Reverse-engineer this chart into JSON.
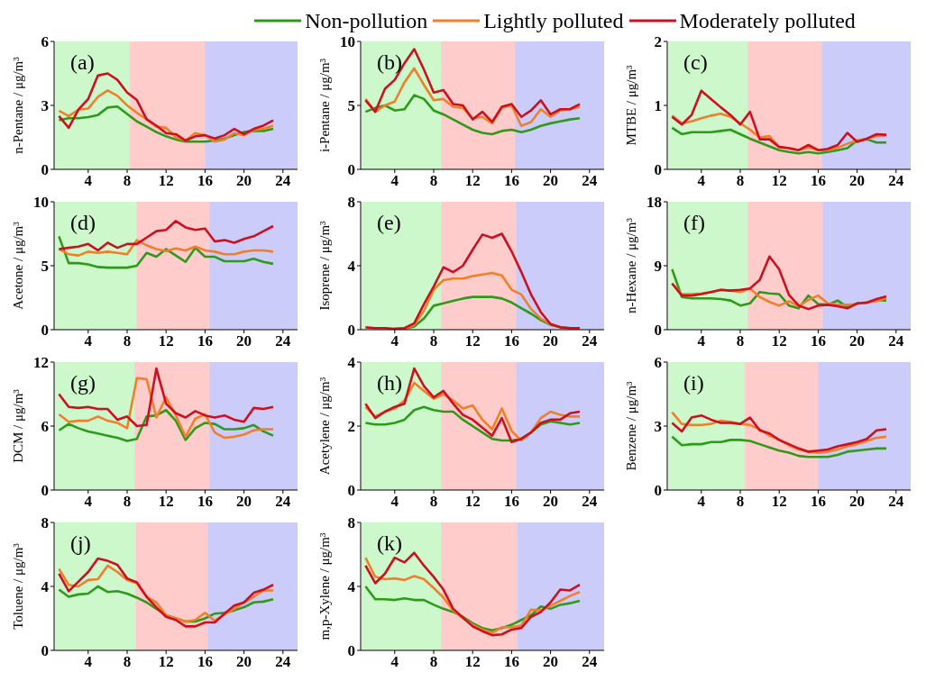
{
  "chart_data": [
    {
      "type": "line",
      "ylabel": "n-Pentane / μg/m³",
      "annotations": [
        "(a)"
      ],
      "legend": "top",
      "x": [
        1,
        2,
        3,
        4,
        5,
        6,
        7,
        8,
        9,
        10,
        11,
        12,
        13,
        14,
        15,
        16,
        17,
        18,
        19,
        20,
        21,
        22,
        23
      ],
      "xlim": [
        0.5,
        25.5
      ],
      "xticks": [
        4,
        8,
        12,
        16,
        20,
        24
      ],
      "ylim": [
        0,
        6
      ],
      "yticks": [
        0,
        3,
        6
      ],
      "bands": [
        {
          "axis": "x",
          "from": 0.6,
          "to": 8.3,
          "color": "#ccf8cc"
        },
        {
          "axis": "x",
          "from": 8.3,
          "to": 16,
          "color": "#ffcccc"
        },
        {
          "axis": "x",
          "from": 16,
          "to": 25.5,
          "color": "#ccccfb"
        }
      ],
      "series": [
        {
          "name": "Non-pollution",
          "color": "#2e9a1a",
          "values": [
            2.3,
            2.4,
            2.4,
            2.45,
            2.55,
            2.9,
            2.95,
            2.6,
            2.25,
            2.0,
            1.75,
            1.55,
            1.4,
            1.3,
            1.3,
            1.3,
            1.35,
            1.45,
            1.6,
            1.75,
            1.8,
            1.8,
            1.9
          ]
        },
        {
          "name": "Lightly polluted",
          "color": "#f07f2a",
          "values": [
            2.75,
            2.5,
            2.8,
            2.85,
            3.4,
            3.7,
            3.45,
            3.0,
            2.65,
            2.35,
            2.0,
            1.95,
            1.5,
            1.35,
            1.7,
            1.6,
            1.3,
            1.4,
            1.7,
            1.6,
            1.85,
            1.9,
            2.05
          ]
        },
        {
          "name": "Moderately polluted",
          "color": "#cc1020",
          "values": [
            2.5,
            1.95,
            2.8,
            3.3,
            4.4,
            4.5,
            4.2,
            3.6,
            3.25,
            2.35,
            2.05,
            1.7,
            1.65,
            1.35,
            1.55,
            1.6,
            1.45,
            1.6,
            1.9,
            1.65,
            1.9,
            2.05,
            2.3
          ]
        }
      ]
    },
    {
      "type": "line",
      "ylabel": "i-Pentane / μg/m³",
      "annotations": [
        "(b)"
      ],
      "x": [
        1,
        2,
        3,
        4,
        5,
        6,
        7,
        8,
        9,
        10,
        11,
        12,
        13,
        14,
        15,
        16,
        17,
        18,
        19,
        20,
        21,
        22,
        23
      ],
      "xlim": [
        0.5,
        25.5
      ],
      "xticks": [
        4,
        8,
        12,
        16,
        20,
        24
      ],
      "ylim": [
        0,
        10
      ],
      "yticks": [
        0,
        5,
        10
      ],
      "bands": [
        {
          "axis": "x",
          "from": 0.6,
          "to": 8.8,
          "color": "#ccf8cc"
        },
        {
          "axis": "x",
          "from": 8.8,
          "to": 16.4,
          "color": "#ffcccc"
        },
        {
          "axis": "x",
          "from": 16.4,
          "to": 25.5,
          "color": "#ccccfb"
        }
      ],
      "series": [
        {
          "color": "#2e9a1a",
          "values": [
            4.5,
            4.8,
            5.0,
            4.6,
            4.7,
            5.8,
            5.5,
            4.6,
            4.3,
            3.9,
            3.5,
            3.1,
            2.85,
            2.75,
            3.0,
            3.1,
            2.9,
            3.1,
            3.4,
            3.6,
            3.75,
            3.9,
            4.0
          ]
        },
        {
          "color": "#f07f2a",
          "values": [
            5.5,
            4.5,
            5.0,
            5.3,
            6.8,
            7.9,
            6.6,
            5.4,
            5.5,
            4.9,
            4.8,
            4.0,
            4.1,
            3.6,
            4.8,
            5.0,
            3.4,
            3.7,
            4.7,
            4.1,
            4.6,
            4.7,
            4.9
          ]
        },
        {
          "color": "#cc1020",
          "values": [
            5.4,
            4.5,
            6.3,
            7.0,
            8.3,
            9.4,
            7.8,
            6.0,
            6.2,
            5.1,
            5.0,
            3.9,
            4.5,
            3.7,
            4.9,
            5.1,
            4.1,
            4.6,
            5.4,
            4.3,
            4.7,
            4.7,
            5.1
          ]
        }
      ]
    },
    {
      "type": "line",
      "ylabel": "MTBE / μg/m³",
      "annotations": [
        "(c)"
      ],
      "x": [
        1,
        2,
        3,
        4,
        5,
        6,
        7,
        8,
        9,
        10,
        11,
        12,
        13,
        14,
        15,
        16,
        17,
        18,
        19,
        20,
        21,
        22,
        23
      ],
      "xlim": [
        0.5,
        25.5
      ],
      "xticks": [
        4,
        8,
        12,
        16,
        20,
        24
      ],
      "ylim": [
        0,
        2
      ],
      "yticks": [
        0,
        1,
        2
      ],
      "bands": [
        {
          "axis": "x",
          "from": 0.6,
          "to": 8.8,
          "color": "#ccf8cc"
        },
        {
          "axis": "x",
          "from": 8.8,
          "to": 16.4,
          "color": "#ffcccc"
        },
        {
          "axis": "x",
          "from": 16.4,
          "to": 25.5,
          "color": "#ccccfb"
        }
      ],
      "series": [
        {
          "color": "#2e9a1a",
          "values": [
            0.65,
            0.55,
            0.58,
            0.58,
            0.58,
            0.6,
            0.62,
            0.55,
            0.48,
            0.42,
            0.36,
            0.3,
            0.27,
            0.25,
            0.27,
            0.25,
            0.27,
            0.3,
            0.33,
            0.45,
            0.47,
            0.42,
            0.42
          ]
        },
        {
          "color": "#f07f2a",
          "values": [
            0.84,
            0.72,
            0.75,
            0.8,
            0.84,
            0.87,
            0.82,
            0.72,
            0.62,
            0.5,
            0.52,
            0.35,
            0.33,
            0.3,
            0.34,
            0.3,
            0.3,
            0.34,
            0.4,
            0.45,
            0.48,
            0.52,
            0.53
          ]
        },
        {
          "color": "#cc1020",
          "values": [
            0.82,
            0.7,
            0.85,
            1.23,
            1.1,
            0.97,
            0.85,
            0.7,
            0.9,
            0.47,
            0.47,
            0.35,
            0.33,
            0.3,
            0.38,
            0.3,
            0.32,
            0.38,
            0.57,
            0.43,
            0.48,
            0.55,
            0.54
          ]
        }
      ]
    },
    {
      "type": "line",
      "ylabel": "Acetone / μg/m³",
      "annotations": [
        "(d)"
      ],
      "x": [
        1,
        2,
        3,
        4,
        5,
        6,
        7,
        8,
        9,
        10,
        11,
        12,
        13,
        14,
        15,
        16,
        17,
        18,
        19,
        20,
        21,
        22,
        23
      ],
      "xlim": [
        0.5,
        25.5
      ],
      "xticks": [
        4,
        8,
        12,
        16,
        20,
        24
      ],
      "ylim": [
        0,
        10
      ],
      "yticks": [
        0,
        5,
        10
      ],
      "bands": [
        {
          "axis": "x",
          "from": 0.6,
          "to": 9,
          "color": "#ccf8cc"
        },
        {
          "axis": "x",
          "from": 9,
          "to": 16.5,
          "color": "#ffcccc"
        },
        {
          "axis": "x",
          "from": 16.5,
          "to": 25.5,
          "color": "#ccccfb"
        }
      ],
      "series": [
        {
          "color": "#2e9a1a",
          "values": [
            7.3,
            5.2,
            5.2,
            5.1,
            4.9,
            4.85,
            4.85,
            4.85,
            5.0,
            6.0,
            5.7,
            6.3,
            5.8,
            5.3,
            6.4,
            5.7,
            5.7,
            5.35,
            5.35,
            5.35,
            5.55,
            5.3,
            5.15
          ]
        },
        {
          "color": "#f07f2a",
          "values": [
            6.3,
            5.9,
            5.8,
            6.1,
            6.0,
            6.1,
            6.0,
            5.9,
            7.0,
            6.6,
            6.3,
            6.15,
            6.35,
            6.2,
            6.5,
            6.2,
            6.1,
            5.9,
            5.9,
            6.1,
            6.2,
            6.2,
            6.1
          ]
        },
        {
          "color": "#cc1020",
          "values": [
            6.3,
            6.4,
            6.5,
            6.7,
            6.2,
            6.8,
            6.4,
            6.7,
            6.7,
            7.2,
            7.7,
            7.8,
            8.5,
            8.0,
            7.8,
            7.9,
            6.9,
            7.0,
            6.8,
            7.1,
            7.3,
            7.7,
            8.1
          ]
        }
      ]
    },
    {
      "type": "line",
      "ylabel": "Isoprene / μg/m³",
      "annotations": [
        "(e)"
      ],
      "x": [
        1,
        2,
        3,
        4,
        5,
        6,
        7,
        8,
        9,
        10,
        11,
        12,
        13,
        14,
        15,
        16,
        17,
        18,
        19,
        20,
        21,
        22,
        23
      ],
      "xlim": [
        0.5,
        25.5
      ],
      "xticks": [
        4,
        8,
        12,
        16,
        20,
        24
      ],
      "ylim": [
        0,
        8
      ],
      "yticks": [
        0,
        4,
        8
      ],
      "bands": [
        {
          "axis": "x",
          "from": 0.6,
          "to": 8.8,
          "color": "#ccf8cc"
        },
        {
          "axis": "x",
          "from": 8.8,
          "to": 16.5,
          "color": "#ffcccc"
        },
        {
          "axis": "x",
          "from": 16.5,
          "to": 25.5,
          "color": "#ccccfb"
        }
      ],
      "series": [
        {
          "color": "#2e9a1a",
          "values": [
            null,
            null,
            null,
            0.05,
            0.05,
            0.2,
            0.7,
            1.5,
            1.65,
            1.8,
            1.95,
            2.05,
            2.05,
            2.05,
            1.95,
            1.7,
            1.35,
            1.0,
            0.6,
            0.3,
            0.15,
            0.1,
            0.1
          ]
        },
        {
          "color": "#f07f2a",
          "values": [
            null,
            null,
            null,
            0.05,
            0.05,
            0.3,
            1.2,
            2.5,
            3.1,
            3.2,
            3.2,
            3.35,
            3.45,
            3.55,
            3.4,
            2.5,
            2.2,
            1.3,
            0.7,
            0.35,
            0.15,
            null,
            null
          ]
        },
        {
          "color": "#cc1020",
          "values": [
            0.15,
            0.1,
            0.1,
            0.05,
            0.1,
            0.4,
            1.6,
            2.7,
            3.9,
            3.6,
            4.0,
            5.0,
            5.95,
            5.75,
            6.0,
            4.9,
            3.6,
            2.2,
            1.1,
            0.35,
            0.15,
            0.1,
            0.1
          ]
        }
      ]
    },
    {
      "type": "line",
      "ylabel": "n-Hexane / μg/m³",
      "annotations": [
        "(f)"
      ],
      "x": [
        1,
        2,
        3,
        4,
        5,
        6,
        7,
        8,
        9,
        10,
        11,
        12,
        13,
        14,
        15,
        16,
        17,
        18,
        19,
        20,
        21,
        22,
        23
      ],
      "xlim": [
        0.5,
        25.5
      ],
      "xticks": [
        4,
        8,
        12,
        16,
        20,
        24
      ],
      "ylim": [
        0,
        18
      ],
      "yticks": [
        0,
        9,
        18
      ],
      "bands": [
        {
          "axis": "x",
          "from": 0.6,
          "to": 8.8,
          "color": "#ccf8cc"
        },
        {
          "axis": "x",
          "from": 8.8,
          "to": 16.5,
          "color": "#ffcccc"
        },
        {
          "axis": "x",
          "from": 16.5,
          "to": 25.5,
          "color": "#ccccfb"
        }
      ],
      "series": [
        {
          "color": "#2e9a1a",
          "values": [
            8.5,
            4.6,
            4.4,
            4.4,
            4.4,
            4.3,
            4.1,
            3.4,
            3.7,
            5.3,
            5.1,
            5.0,
            3.4,
            3.0,
            4.8,
            3.6,
            3.5,
            4.1,
            3.2,
            3.7,
            3.8,
            4.2,
            4.1
          ]
        },
        {
          "color": "#f07f2a",
          "values": [
            6.5,
            5.0,
            5.0,
            5.1,
            5.3,
            5.6,
            5.5,
            5.3,
            5.8,
            4.6,
            3.9,
            3.4,
            4.0,
            3.3,
            4.2,
            4.8,
            3.7,
            3.5,
            3.5,
            3.6,
            3.9,
            4.0,
            4.5
          ]
        },
        {
          "color": "#cc1020",
          "values": [
            6.5,
            4.8,
            4.8,
            5.0,
            5.3,
            5.6,
            5.5,
            5.6,
            5.8,
            7.0,
            10.3,
            8.5,
            4.9,
            3.4,
            2.9,
            3.4,
            3.5,
            3.3,
            3.0,
            3.7,
            3.8,
            4.3,
            4.7
          ]
        }
      ]
    },
    {
      "type": "line",
      "ylabel": "DCM / μg/m³",
      "annotations": [
        "(g)"
      ],
      "x": [
        1,
        2,
        3,
        4,
        5,
        6,
        7,
        8,
        9,
        10,
        11,
        12,
        13,
        14,
        15,
        16,
        17,
        18,
        19,
        20,
        21,
        22,
        23
      ],
      "xlim": [
        0.5,
        25.5
      ],
      "xticks": [
        4,
        8,
        12,
        16,
        20,
        24
      ],
      "ylim": [
        0,
        12
      ],
      "yticks": [
        0,
        6,
        12
      ],
      "bands": [
        {
          "axis": "x",
          "from": 0.6,
          "to": 8.8,
          "color": "#ccf8cc"
        },
        {
          "axis": "x",
          "from": 8.8,
          "to": 16.5,
          "color": "#ffcccc"
        },
        {
          "axis": "x",
          "from": 16.5,
          "to": 25.5,
          "color": "#ccccfb"
        }
      ],
      "series": [
        {
          "color": "#2e9a1a",
          "values": [
            5.6,
            6.2,
            5.8,
            5.5,
            5.3,
            5.1,
            4.9,
            4.6,
            4.8,
            6.9,
            7.0,
            7.5,
            6.5,
            4.7,
            5.8,
            6.3,
            6.2,
            5.7,
            5.7,
            5.8,
            6.1,
            5.5,
            5.1
          ]
        },
        {
          "color": "#f07f2a",
          "values": [
            7.1,
            6.4,
            6.5,
            6.5,
            6.9,
            6.5,
            6.3,
            5.8,
            10.5,
            10.4,
            6.8,
            8.7,
            7.0,
            5.0,
            6.7,
            7.1,
            5.4,
            4.9,
            5.0,
            5.2,
            5.6,
            5.7,
            5.7
          ]
        },
        {
          "color": "#cc1020",
          "values": [
            9.0,
            7.8,
            7.7,
            7.8,
            7.6,
            7.6,
            6.6,
            6.9,
            6.0,
            6.1,
            11.4,
            8.1,
            7.2,
            6.8,
            7.4,
            7.0,
            6.8,
            7.0,
            6.6,
            6.4,
            7.7,
            7.6,
            7.8
          ]
        }
      ]
    },
    {
      "type": "line",
      "ylabel": "Acetylene / μg/m³",
      "annotations": [
        "(h)"
      ],
      "x": [
        1,
        2,
        3,
        4,
        5,
        6,
        7,
        8,
        9,
        10,
        11,
        12,
        13,
        14,
        15,
        16,
        17,
        18,
        19,
        20,
        21,
        22,
        23
      ],
      "xlim": [
        0.5,
        25.5
      ],
      "xticks": [
        4,
        8,
        12,
        16,
        20,
        24
      ],
      "ylim": [
        0,
        4
      ],
      "yticks": [
        0,
        2,
        4
      ],
      "bands": [
        {
          "axis": "x",
          "from": 0.6,
          "to": 8.8,
          "color": "#ccf8cc"
        },
        {
          "axis": "x",
          "from": 8.8,
          "to": 16.5,
          "color": "#ffcccc"
        },
        {
          "axis": "x",
          "from": 16.5,
          "to": 25.5,
          "color": "#ccccfb"
        }
      ],
      "series": [
        {
          "color": "#2e9a1a",
          "values": [
            2.1,
            2.05,
            2.05,
            2.1,
            2.2,
            2.5,
            2.6,
            2.5,
            2.45,
            2.45,
            2.2,
            2.0,
            1.8,
            1.6,
            1.55,
            1.55,
            1.6,
            1.8,
            2.05,
            2.15,
            2.1,
            2.05,
            2.1
          ]
        },
        {
          "color": "#f07f2a",
          "values": [
            2.6,
            2.3,
            2.45,
            2.55,
            2.8,
            3.35,
            3.1,
            2.85,
            3.0,
            2.8,
            2.55,
            2.65,
            2.2,
            1.9,
            2.55,
            1.85,
            1.55,
            1.8,
            2.25,
            2.45,
            2.35,
            2.3,
            2.3
          ]
        },
        {
          "color": "#cc1020",
          "values": [
            2.7,
            2.25,
            2.45,
            2.6,
            2.7,
            3.8,
            3.25,
            2.9,
            3.1,
            2.7,
            2.35,
            2.2,
            1.95,
            1.7,
            2.25,
            1.5,
            1.6,
            1.8,
            2.1,
            2.2,
            2.2,
            2.4,
            2.45
          ]
        }
      ]
    },
    {
      "type": "line",
      "ylabel": "Benzene / μg/m³",
      "annotations": [
        "(i)"
      ],
      "x": [
        1,
        2,
        3,
        4,
        5,
        6,
        7,
        8,
        9,
        10,
        11,
        12,
        13,
        14,
        15,
        16,
        17,
        18,
        19,
        20,
        21,
        22,
        23
      ],
      "xlim": [
        0.5,
        25.5
      ],
      "xticks": [
        4,
        8,
        12,
        16,
        20,
        24
      ],
      "ylim": [
        0,
        6
      ],
      "yticks": [
        0,
        3,
        6
      ],
      "bands": [
        {
          "axis": "x",
          "from": 0.6,
          "to": 8.5,
          "color": "#ccf8cc"
        },
        {
          "axis": "x",
          "from": 8.5,
          "to": 16,
          "color": "#ffcccc"
        },
        {
          "axis": "x",
          "from": 16,
          "to": 25.5,
          "color": "#ccccfb"
        }
      ],
      "series": [
        {
          "color": "#2e9a1a",
          "values": [
            2.5,
            2.1,
            2.15,
            2.15,
            2.25,
            2.25,
            2.35,
            2.35,
            2.3,
            2.15,
            2.0,
            1.85,
            1.75,
            1.6,
            1.55,
            1.55,
            1.55,
            1.65,
            1.8,
            1.85,
            1.9,
            1.95,
            1.95
          ]
        },
        {
          "color": "#f07f2a",
          "values": [
            3.65,
            3.1,
            3.05,
            3.05,
            3.1,
            3.25,
            3.2,
            3.1,
            3.05,
            2.85,
            2.55,
            2.35,
            2.1,
            1.9,
            1.8,
            1.75,
            1.8,
            1.9,
            2.05,
            2.15,
            2.3,
            2.45,
            2.5
          ]
        },
        {
          "color": "#cc1020",
          "values": [
            3.15,
            2.75,
            3.4,
            3.5,
            3.3,
            3.15,
            3.15,
            3.1,
            3.4,
            2.8,
            2.65,
            2.35,
            2.15,
            1.95,
            1.8,
            1.85,
            1.9,
            2.05,
            2.15,
            2.25,
            2.4,
            2.8,
            2.85
          ]
        }
      ]
    },
    {
      "type": "line",
      "ylabel": "Toluene / μg/m³",
      "annotations": [
        "(j)"
      ],
      "x": [
        1,
        2,
        3,
        4,
        5,
        6,
        7,
        8,
        9,
        10,
        11,
        12,
        13,
        14,
        15,
        16,
        17,
        18,
        19,
        20,
        21,
        22,
        23
      ],
      "xlim": [
        0.5,
        25.5
      ],
      "xticks": [
        4,
        8,
        12,
        16,
        20,
        24
      ],
      "ylim": [
        0,
        8
      ],
      "yticks": [
        0,
        4,
        8
      ],
      "bands": [
        {
          "axis": "x",
          "from": 0.6,
          "to": 8.9,
          "color": "#ccf8cc"
        },
        {
          "axis": "x",
          "from": 8.9,
          "to": 16.3,
          "color": "#ffcccc"
        },
        {
          "axis": "x",
          "from": 16.3,
          "to": 25.5,
          "color": "#ccccfb"
        }
      ],
      "series": [
        {
          "color": "#2e9a1a",
          "values": [
            3.8,
            3.35,
            3.5,
            3.55,
            4.0,
            3.65,
            3.7,
            3.55,
            3.3,
            3.0,
            2.6,
            2.2,
            2.0,
            1.8,
            1.8,
            2.0,
            2.3,
            2.35,
            2.5,
            2.7,
            3.0,
            3.05,
            3.2
          ]
        },
        {
          "color": "#f07f2a",
          "values": [
            5.1,
            4.1,
            4.0,
            4.4,
            4.45,
            5.3,
            4.9,
            4.4,
            4.2,
            3.35,
            3.0,
            2.2,
            2.0,
            1.8,
            1.9,
            2.35,
            1.85,
            2.25,
            2.6,
            3.0,
            3.35,
            3.75,
            3.75
          ]
        },
        {
          "color": "#cc1020",
          "values": [
            4.8,
            3.7,
            4.3,
            4.9,
            5.75,
            5.6,
            5.35,
            4.5,
            4.25,
            3.35,
            2.7,
            2.1,
            1.9,
            1.5,
            1.5,
            1.75,
            1.75,
            2.3,
            2.8,
            3.0,
            3.6,
            3.8,
            4.1
          ]
        }
      ]
    },
    {
      "type": "line",
      "ylabel": "m,p-Xylene / μg/m³",
      "annotations": [
        "(k)"
      ],
      "x": [
        1,
        2,
        3,
        4,
        5,
        6,
        7,
        8,
        9,
        10,
        11,
        12,
        13,
        14,
        15,
        16,
        17,
        18,
        19,
        20,
        21,
        22,
        23
      ],
      "xlim": [
        0.5,
        25.5
      ],
      "xticks": [
        4,
        8,
        12,
        16,
        20,
        24
      ],
      "ylim": [
        0,
        8
      ],
      "yticks": [
        0,
        4,
        8
      ],
      "bands": [
        {
          "axis": "x",
          "from": 0.6,
          "to": 8.8,
          "color": "#ccf8cc"
        },
        {
          "axis": "x",
          "from": 8.8,
          "to": 16.6,
          "color": "#ffcccc"
        },
        {
          "axis": "x",
          "from": 16.6,
          "to": 25.5,
          "color": "#ccccfb"
        }
      ],
      "series": [
        {
          "color": "#2e9a1a",
          "values": [
            4.0,
            3.2,
            3.2,
            3.15,
            3.25,
            3.15,
            3.15,
            2.85,
            2.6,
            2.4,
            2.1,
            1.7,
            1.4,
            1.25,
            1.4,
            1.6,
            1.9,
            2.2,
            2.75,
            2.6,
            2.85,
            2.95,
            3.1
          ]
        },
        {
          "color": "#f07f2a",
          "values": [
            5.8,
            4.6,
            4.45,
            4.5,
            4.4,
            4.65,
            4.45,
            3.9,
            3.3,
            2.5,
            2.0,
            1.6,
            1.3,
            1.1,
            1.45,
            1.45,
            1.55,
            2.55,
            2.5,
            2.8,
            3.1,
            3.4,
            3.65
          ]
        },
        {
          "color": "#cc1020",
          "values": [
            5.3,
            4.2,
            4.8,
            5.8,
            5.5,
            6.1,
            5.3,
            4.6,
            3.8,
            2.6,
            2.05,
            1.5,
            1.2,
            0.95,
            1.0,
            1.3,
            1.4,
            2.1,
            2.4,
            3.0,
            3.8,
            3.75,
            4.1
          ]
        }
      ]
    }
  ]
}
